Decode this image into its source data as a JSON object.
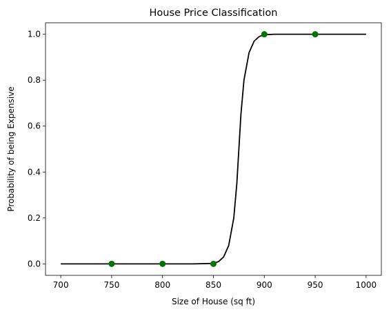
{
  "chart_data": {
    "type": "line",
    "title": "House Price Classification",
    "xlabel": "Size of House (sq ft)",
    "ylabel": "Probability of being Expensive",
    "xlim": [
      685,
      1015
    ],
    "ylim": [
      -0.05,
      1.05
    ],
    "grid": false,
    "x_ticks": [
      700,
      750,
      800,
      850,
      900,
      950,
      1000
    ],
    "y_ticks": [
      0.0,
      0.2,
      0.4,
      0.6,
      0.8,
      1.0
    ],
    "x_tick_labels": [
      "700",
      "750",
      "800",
      "850",
      "900",
      "950",
      "1000"
    ],
    "y_tick_labels": [
      "0.0",
      "0.2",
      "0.4",
      "0.6",
      "0.8",
      "1.0"
    ],
    "series": [
      {
        "kind": "line",
        "color": "#000000",
        "x": [
          700,
          830,
          850,
          855,
          860,
          865,
          870,
          873,
          875,
          877,
          880,
          885,
          890,
          895,
          900,
          910,
          1000
        ],
        "y": [
          0.0,
          0.0,
          0.002,
          0.01,
          0.03,
          0.08,
          0.2,
          0.35,
          0.5,
          0.65,
          0.8,
          0.92,
          0.97,
          0.99,
          0.998,
          1.0,
          1.0
        ]
      },
      {
        "kind": "scatter",
        "color": "#007400",
        "x": [
          750,
          800,
          850,
          900,
          950
        ],
        "y": [
          0,
          0,
          0,
          1,
          1
        ]
      }
    ]
  }
}
